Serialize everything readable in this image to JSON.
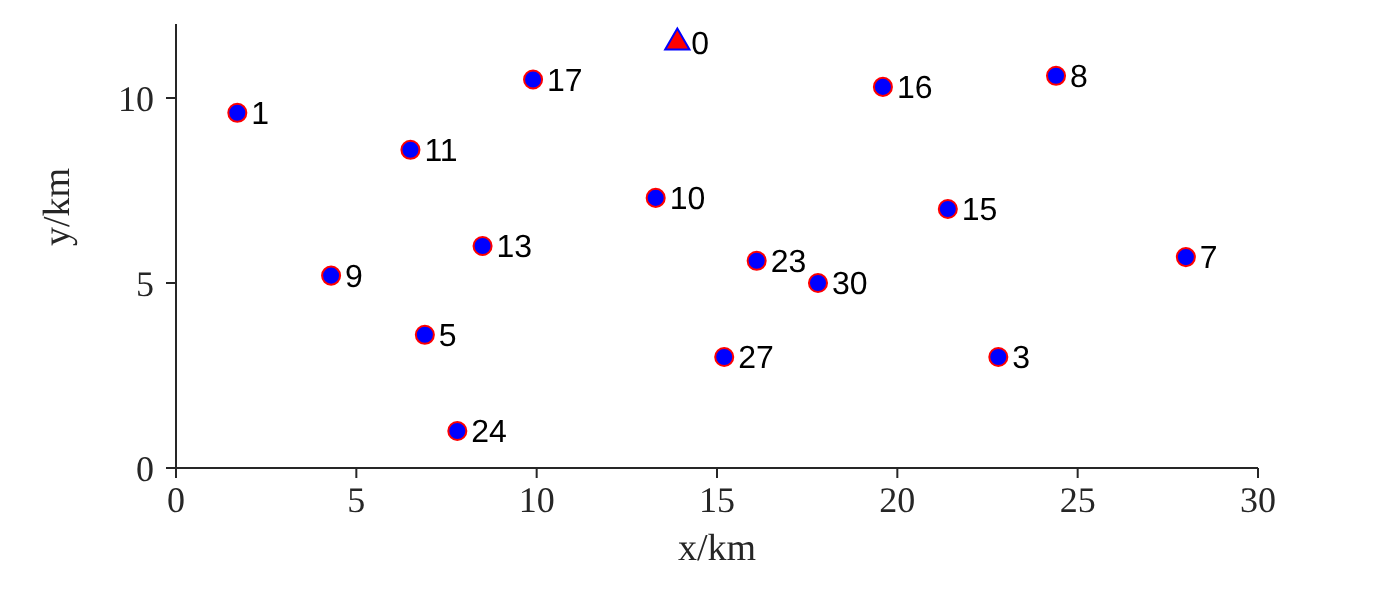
{
  "chart_data": {
    "type": "scatter",
    "xlabel": "x/km",
    "ylabel": "y/km",
    "xlim": [
      0,
      30
    ],
    "ylim": [
      0,
      12
    ],
    "xticks": [
      0,
      5,
      10,
      15,
      20,
      25,
      30
    ],
    "yticks": [
      0,
      5,
      10
    ],
    "grid": false,
    "legend": false,
    "series": [
      {
        "type": "scatter",
        "color": "#0000ff",
        "marker": "circle",
        "x": [
          1.7,
          9.9,
          19.6,
          24.4,
          6.5,
          13.3,
          21.4,
          8.5,
          4.3,
          16.1,
          17.8,
          28.0,
          6.9,
          15.2,
          22.8,
          7.8
        ],
        "values": [
          9.6,
          10.5,
          10.3,
          10.6,
          8.6,
          7.3,
          7.0,
          6.0,
          5.2,
          5.6,
          5.0,
          5.7,
          3.6,
          3.0,
          3.0,
          1.0
        ]
      },
      {
        "type": "scatter",
        "color": "#ff0000",
        "marker": "triangle",
        "x": [
          13.9
        ],
        "values": [
          11.5
        ]
      }
    ],
    "annotations": [
      {
        "text": "1",
        "x": 1.7,
        "y": 9.6
      },
      {
        "text": "17",
        "x": 9.9,
        "y": 10.5
      },
      {
        "text": "16",
        "x": 19.6,
        "y": 10.3
      },
      {
        "text": "8",
        "x": 24.4,
        "y": 10.6
      },
      {
        "text": "11",
        "x": 6.5,
        "y": 8.6
      },
      {
        "text": "10",
        "x": 13.3,
        "y": 7.3
      },
      {
        "text": "15",
        "x": 21.4,
        "y": 7.0
      },
      {
        "text": "13",
        "x": 8.5,
        "y": 6.0
      },
      {
        "text": "9",
        "x": 4.3,
        "y": 5.2
      },
      {
        "text": "23",
        "x": 16.1,
        "y": 5.6
      },
      {
        "text": "30",
        "x": 17.8,
        "y": 5.0
      },
      {
        "text": "7",
        "x": 28.0,
        "y": 5.7
      },
      {
        "text": "5",
        "x": 6.9,
        "y": 3.6
      },
      {
        "text": "27",
        "x": 15.2,
        "y": 3.0
      },
      {
        "text": "3",
        "x": 22.8,
        "y": 3.0
      },
      {
        "text": "24",
        "x": 7.8,
        "y": 1.0
      },
      {
        "text": "0",
        "x": 13.9,
        "y": 11.5
      }
    ]
  }
}
